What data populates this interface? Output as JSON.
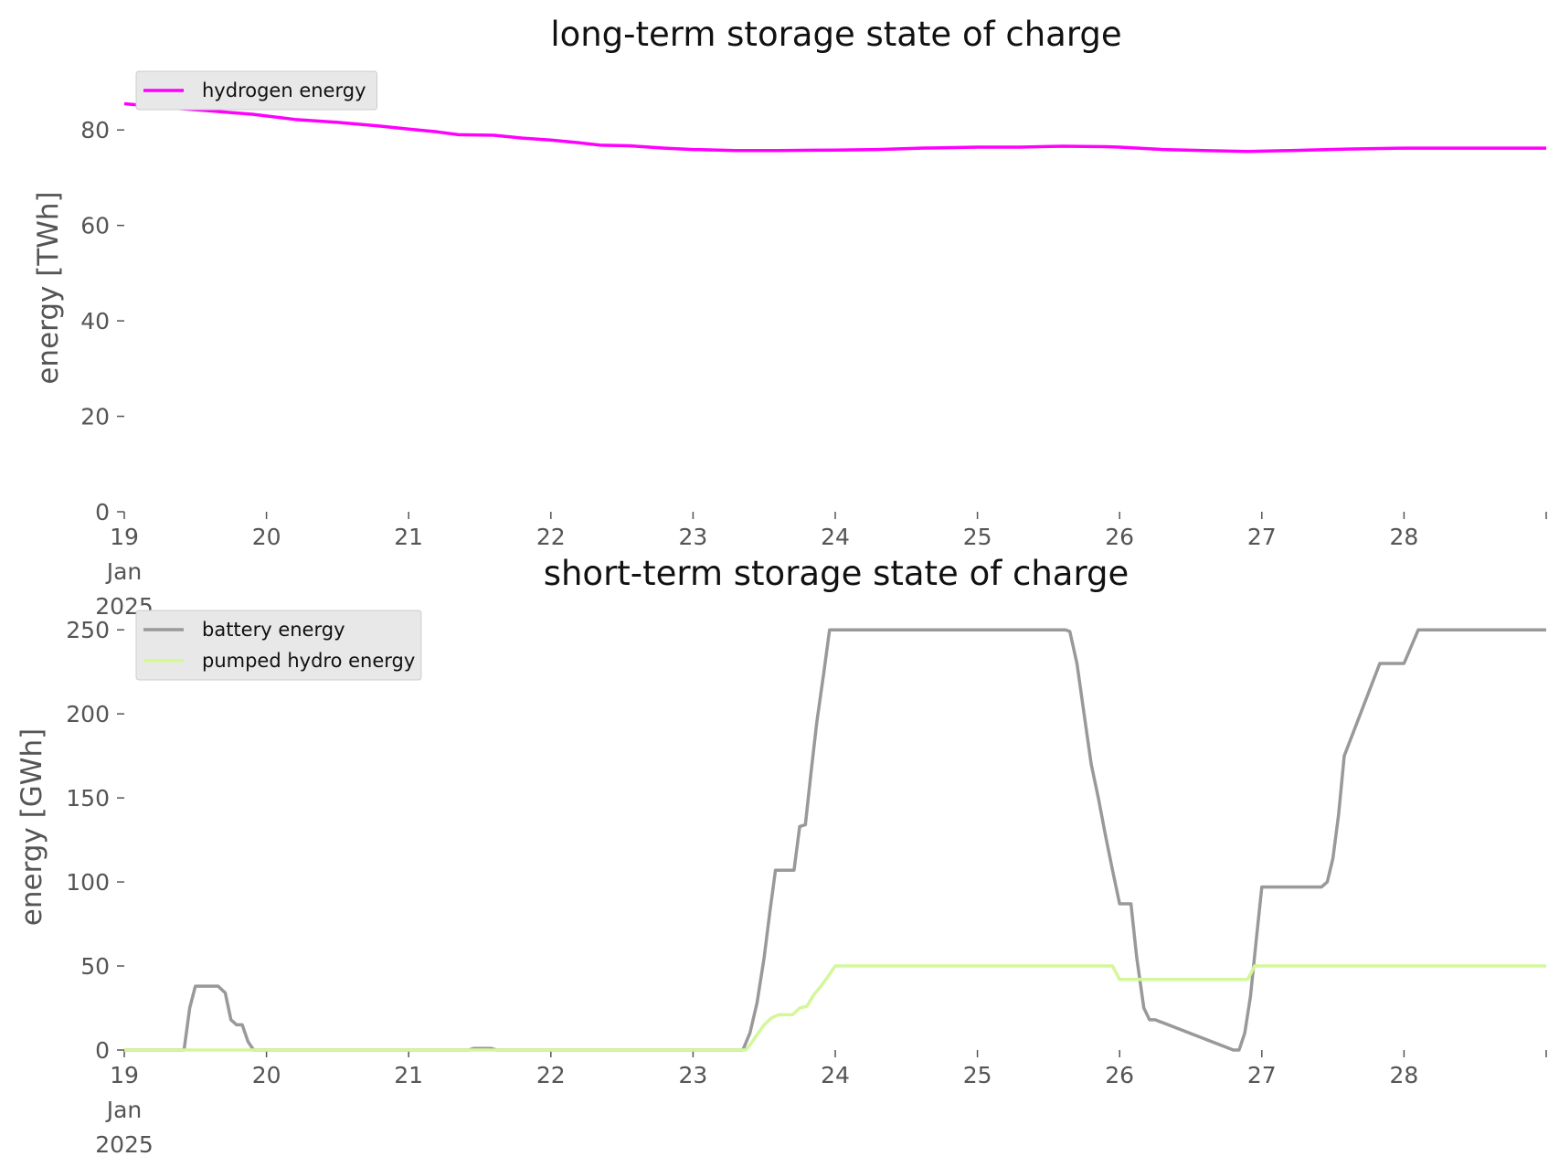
{
  "chart_data": [
    {
      "type": "line",
      "title": "long-term storage state of charge",
      "xlabel": "",
      "ylabel": "energy [TWh]",
      "ylim": [
        0,
        90
      ],
      "yticks": [
        0,
        20,
        40,
        60,
        80
      ],
      "xlim": [
        19,
        29
      ],
      "xticks": [
        {
          "value": 19,
          "lines": [
            "19",
            "Jan",
            "2025"
          ]
        },
        {
          "value": 20,
          "lines": [
            "20"
          ]
        },
        {
          "value": 21,
          "lines": [
            "21"
          ]
        },
        {
          "value": 22,
          "lines": [
            "22"
          ]
        },
        {
          "value": 23,
          "lines": [
            "23"
          ]
        },
        {
          "value": 24,
          "lines": [
            "24"
          ]
        },
        {
          "value": 25,
          "lines": [
            "25"
          ]
        },
        {
          "value": 26,
          "lines": [
            "26"
          ]
        },
        {
          "value": 27,
          "lines": [
            "27"
          ]
        },
        {
          "value": 28,
          "lines": [
            "28"
          ]
        }
      ],
      "grid": false,
      "legend_position": "top-left",
      "series": [
        {
          "name": "hydrogen energy",
          "color": "#ff00ff",
          "x": [
            19.0,
            19.3,
            19.6,
            19.9,
            20.2,
            20.5,
            20.8,
            21.0,
            21.2,
            21.35,
            21.6,
            21.8,
            22.0,
            22.2,
            22.35,
            22.55,
            22.8,
            23.0,
            23.3,
            23.6,
            24.0,
            24.3,
            24.6,
            25.0,
            25.3,
            25.6,
            25.9,
            26.0,
            26.3,
            26.6,
            26.9,
            27.2,
            27.6,
            28.0,
            28.4,
            28.8,
            29.0
          ],
          "y": [
            85.5,
            84.7,
            84.0,
            83.3,
            82.2,
            81.6,
            80.8,
            80.2,
            79.6,
            79.0,
            78.9,
            78.3,
            77.9,
            77.3,
            76.8,
            76.7,
            76.2,
            75.9,
            75.7,
            75.7,
            75.8,
            75.9,
            76.2,
            76.4,
            76.4,
            76.6,
            76.5,
            76.4,
            75.9,
            75.7,
            75.5,
            75.7,
            76.0,
            76.2,
            76.2,
            76.2,
            76.2
          ]
        }
      ]
    },
    {
      "type": "line",
      "title": "short-term storage state of charge",
      "xlabel": "",
      "ylabel": "energy [GWh]",
      "ylim": [
        0,
        255
      ],
      "yticks": [
        0,
        50,
        100,
        150,
        200,
        250
      ],
      "xlim": [
        19,
        29
      ],
      "xticks": [
        {
          "value": 19,
          "lines": [
            "19",
            "Jan",
            "2025"
          ]
        },
        {
          "value": 20,
          "lines": [
            "20"
          ]
        },
        {
          "value": 21,
          "lines": [
            "21"
          ]
        },
        {
          "value": 22,
          "lines": [
            "22"
          ]
        },
        {
          "value": 23,
          "lines": [
            "23"
          ]
        },
        {
          "value": 24,
          "lines": [
            "24"
          ]
        },
        {
          "value": 25,
          "lines": [
            "25"
          ]
        },
        {
          "value": 26,
          "lines": [
            "26"
          ]
        },
        {
          "value": 27,
          "lines": [
            "27"
          ]
        },
        {
          "value": 28,
          "lines": [
            "28"
          ]
        }
      ],
      "grid": false,
      "legend_position": "top-left",
      "series": [
        {
          "name": "battery energy",
          "color": "#999999",
          "x": [
            19.0,
            19.42,
            19.46,
            19.5,
            19.54,
            19.66,
            19.71,
            19.75,
            19.79,
            19.83,
            19.87,
            19.91,
            19.93,
            21.42,
            21.46,
            21.58,
            21.62,
            23.35,
            23.4,
            23.45,
            23.5,
            23.54,
            23.58,
            23.62,
            23.67,
            23.71,
            23.75,
            23.79,
            23.83,
            23.87,
            23.92,
            23.96,
            24.0,
            25.08,
            25.12,
            25.17,
            25.21,
            25.25,
            25.29,
            25.33,
            25.38,
            25.42,
            25.46,
            25.5,
            25.54,
            25.58,
            25.62,
            25.65,
            25.7,
            25.75,
            25.8,
            25.85,
            25.9,
            25.95,
            26.0,
            26.04,
            26.08,
            26.12,
            26.17,
            26.21,
            26.25,
            26.8,
            26.84,
            26.88,
            26.92,
            26.96,
            27.0,
            27.33,
            27.38,
            27.42,
            27.46,
            27.5,
            27.54,
            27.58,
            27.83,
            27.88,
            27.92,
            27.96,
            28.0,
            28.1,
            29.0
          ],
          "y": [
            0,
            0,
            25,
            38,
            38,
            38,
            34,
            18,
            15,
            15,
            5,
            0,
            0,
            0,
            1,
            1,
            0,
            0,
            10,
            28,
            55,
            82,
            107,
            107,
            107,
            107,
            133,
            134,
            165,
            195,
            225,
            250,
            250,
            250,
            250,
            250,
            250,
            250,
            250,
            250,
            250,
            250,
            250,
            250,
            250,
            250,
            250,
            249,
            230,
            200,
            170,
            150,
            128,
            107,
            87,
            87,
            87,
            55,
            25,
            18,
            18,
            0,
            0,
            10,
            32,
            65,
            97,
            97,
            97,
            97,
            100,
            114,
            140,
            175,
            230,
            230,
            230,
            230,
            230,
            250,
            250
          ]
        },
        {
          "name": "pumped hydro energy",
          "color": "#d4f79a",
          "x": [
            19.0,
            23.37,
            23.4,
            23.45,
            23.5,
            23.55,
            23.6,
            23.65,
            23.7,
            23.75,
            23.8,
            23.85,
            23.9,
            23.96,
            24.0,
            25.9,
            25.95,
            26.0,
            26.85,
            26.9,
            26.95,
            29.0
          ],
          "y": [
            0,
            0,
            3,
            9,
            15,
            19,
            21,
            21,
            21,
            25,
            26,
            33,
            38,
            45,
            50,
            50,
            50,
            42,
            42,
            42,
            50,
            50
          ]
        }
      ]
    }
  ]
}
